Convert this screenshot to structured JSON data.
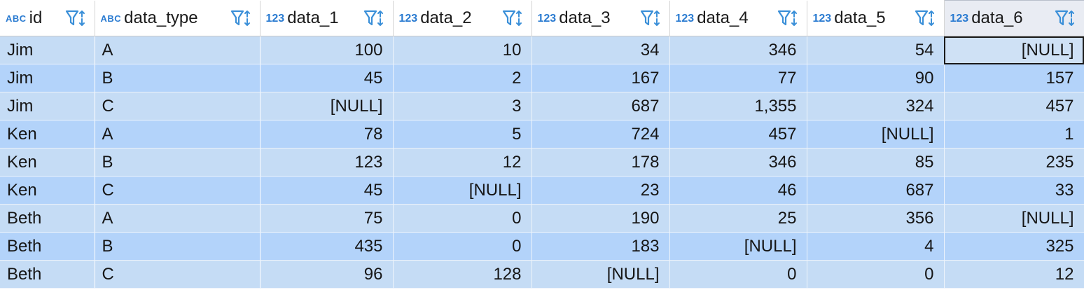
{
  "grid": {
    "columns": [
      {
        "type_tag": "ABC",
        "name": "id"
      },
      {
        "type_tag": "ABC",
        "name": "data_type"
      },
      {
        "type_tag": "123",
        "name": "data_1"
      },
      {
        "type_tag": "123",
        "name": "data_2"
      },
      {
        "type_tag": "123",
        "name": "data_3"
      },
      {
        "type_tag": "123",
        "name": "data_4"
      },
      {
        "type_tag": "123",
        "name": "data_5"
      },
      {
        "type_tag": "123",
        "name": "data_6"
      }
    ],
    "rows": [
      [
        "Jim",
        "A",
        "100",
        "10",
        "34",
        "346",
        "54",
        "[NULL]"
      ],
      [
        "Jim",
        "B",
        "45",
        "2",
        "167",
        "77",
        "90",
        "157"
      ],
      [
        "Jim",
        "C",
        "[NULL]",
        "3",
        "687",
        "1,355",
        "324",
        "457"
      ],
      [
        "Ken",
        "A",
        "78",
        "5",
        "724",
        "457",
        "[NULL]",
        "1"
      ],
      [
        "Ken",
        "B",
        "123",
        "12",
        "178",
        "346",
        "85",
        "235"
      ],
      [
        "Ken",
        "C",
        "45",
        "[NULL]",
        "23",
        "46",
        "687",
        "33"
      ],
      [
        "Beth",
        "A",
        "75",
        "0",
        "190",
        "25",
        "356",
        "[NULL]"
      ],
      [
        "Beth",
        "B",
        "435",
        "0",
        "183",
        "[NULL]",
        "4",
        "325"
      ],
      [
        "Beth",
        "C",
        "96",
        "128",
        "[NULL]",
        "0",
        "0",
        "12"
      ]
    ]
  },
  "icons": {
    "filter": "filter-funnel-icon",
    "sort": "sort-arrows-icon"
  },
  "colors": {
    "type_tag": "#2a7bd1",
    "row_odd": "#c5dcf5",
    "row_even": "#b3d3fa",
    "icon": "#3a8fd8"
  }
}
